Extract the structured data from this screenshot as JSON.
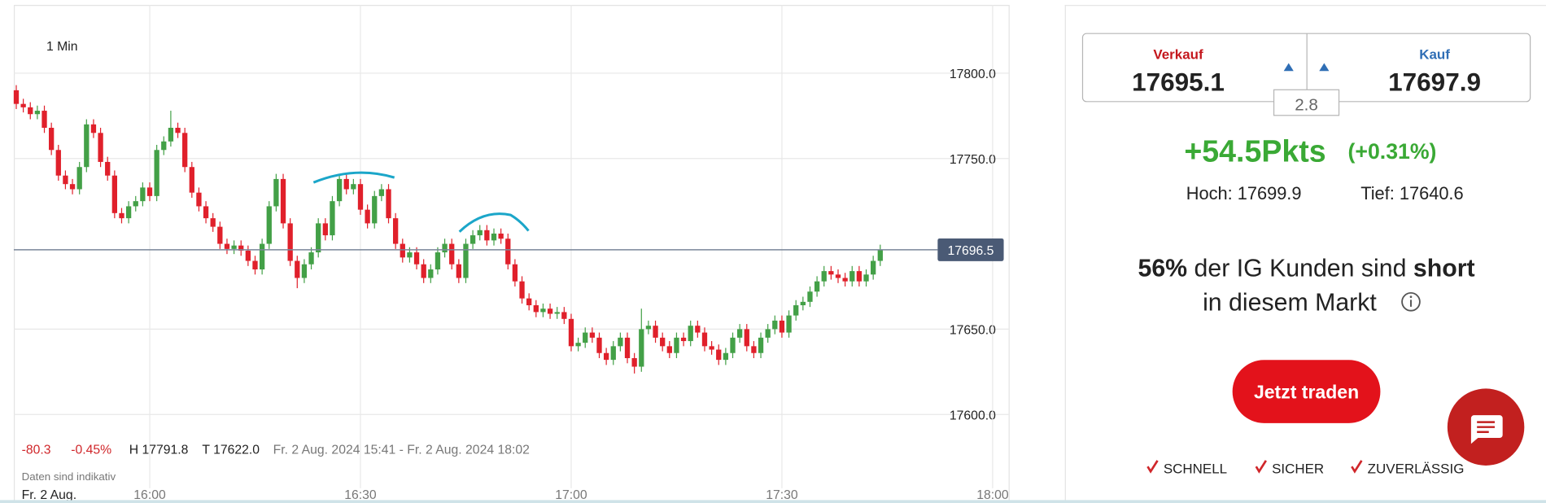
{
  "chart_data": {
    "type": "candlestick",
    "interval": "1 Min",
    "x": [
      "15:41",
      "15:42",
      "15:43",
      "15:44",
      "15:45",
      "15:46",
      "15:47",
      "15:48",
      "15:49",
      "15:50",
      "15:51",
      "15:52",
      "15:53",
      "15:54",
      "15:55",
      "15:56",
      "15:57",
      "15:58",
      "15:59",
      "16:00",
      "16:01",
      "16:02",
      "16:03",
      "16:04",
      "16:05",
      "16:06",
      "16:07",
      "16:08",
      "16:09",
      "16:10",
      "16:11",
      "16:12",
      "16:13",
      "16:14",
      "16:15",
      "16:16",
      "16:17",
      "16:18",
      "16:19",
      "16:20",
      "16:21",
      "16:22",
      "16:23",
      "16:24",
      "16:25",
      "16:26",
      "16:27",
      "16:28",
      "16:29",
      "16:30",
      "16:31",
      "16:32",
      "16:33",
      "16:34",
      "16:35",
      "16:36",
      "16:37",
      "16:38",
      "16:39",
      "16:40",
      "16:41",
      "16:42",
      "16:43",
      "16:44",
      "16:45",
      "16:46",
      "16:47",
      "16:48",
      "16:49",
      "16:50",
      "16:51",
      "16:52",
      "16:53",
      "16:54",
      "16:55",
      "16:56",
      "16:57",
      "16:58",
      "16:59",
      "17:00",
      "17:01",
      "17:02",
      "17:03",
      "17:04",
      "17:05",
      "17:06",
      "17:07",
      "17:08",
      "17:09",
      "17:10",
      "17:11",
      "17:12",
      "17:13",
      "17:14",
      "17:15",
      "17:16",
      "17:17",
      "17:18",
      "17:19",
      "17:20",
      "17:21",
      "17:22",
      "17:23",
      "17:24",
      "17:25",
      "17:26",
      "17:27",
      "17:28",
      "17:29",
      "17:30",
      "17:31",
      "17:32",
      "17:33",
      "17:34",
      "17:35",
      "17:36",
      "17:37",
      "17:38",
      "17:39",
      "17:40",
      "17:41",
      "17:42",
      "17:43",
      "17:44"
    ],
    "open": [
      17790,
      17782,
      17780,
      17776,
      17778,
      17768,
      17755,
      17740,
      17735,
      17732,
      17745,
      17770,
      17765,
      17748,
      17740,
      17718,
      17715,
      17722,
      17725,
      17733,
      17728,
      17755,
      17760,
      17768,
      17765,
      17745,
      17730,
      17722,
      17715,
      17710,
      17700,
      17697,
      17699,
      17696,
      17690,
      17685,
      17700,
      17722,
      17738,
      17712,
      17690,
      17680,
      17688,
      17695,
      17712,
      17705,
      17725,
      17738,
      17732,
      17735,
      17720,
      17712,
      17728,
      17732,
      17715,
      17700,
      17692,
      17695,
      17688,
      17680,
      17685,
      17695,
      17700,
      17688,
      17680,
      17700,
      17705,
      17708,
      17702,
      17706,
      17703,
      17688,
      17678,
      17668,
      17664,
      17660,
      17662,
      17659,
      17660,
      17656,
      17640,
      17642,
      17648,
      17645,
      17636,
      17632,
      17640,
      17645,
      17633,
      17628,
      17650,
      17652,
      17645,
      17640,
      17636,
      17645,
      17643,
      17652,
      17648,
      17640,
      17638,
      17632,
      17636,
      17645,
      17650,
      17640,
      17636,
      17645,
      17650,
      17655,
      17648,
      17658,
      17664,
      17666,
      17672,
      17678,
      17684,
      17682,
      17680,
      17678,
      17684,
      17678,
      17682,
      17690
    ],
    "high": [
      17793,
      17785,
      17783,
      17781,
      17781,
      17771,
      17758,
      17743,
      17738,
      17748,
      17773,
      17773,
      17768,
      17751,
      17743,
      17721,
      17725,
      17728,
      17736,
      17736,
      17758,
      17763,
      17778,
      17771,
      17768,
      17748,
      17733,
      17725,
      17718,
      17713,
      17703,
      17702,
      17702,
      17699,
      17693,
      17703,
      17725,
      17741,
      17741,
      17715,
      17693,
      17691,
      17698,
      17715,
      17715,
      17728,
      17741,
      17741,
      17738,
      17738,
      17723,
      17731,
      17735,
      17735,
      17718,
      17703,
      17698,
      17698,
      17691,
      17688,
      17698,
      17703,
      17703,
      17691,
      17703,
      17708,
      17711,
      17711,
      17709,
      17709,
      17706,
      17691,
      17681,
      17671,
      17667,
      17665,
      17665,
      17663,
      17663,
      17659,
      17645,
      17651,
      17651,
      17648,
      17639,
      17643,
      17648,
      17648,
      17636,
      17662,
      17655,
      17655,
      17648,
      17643,
      17648,
      17648,
      17655,
      17655,
      17651,
      17643,
      17641,
      17639,
      17648,
      17653,
      17653,
      17643,
      17648,
      17653,
      17658,
      17658,
      17661,
      17667,
      17669,
      17675,
      17681,
      17687,
      17687,
      17685,
      17683,
      17687,
      17687,
      17685,
      17693,
      17699.5
    ],
    "low": [
      17779,
      17777,
      17773,
      17773,
      17765,
      17752,
      17737,
      17732,
      17729,
      17729,
      17742,
      17762,
      17745,
      17737,
      17715,
      17712,
      17712,
      17719,
      17722,
      17725,
      17725,
      17752,
      17757,
      17762,
      17742,
      17727,
      17719,
      17712,
      17707,
      17697,
      17694,
      17694,
      17693,
      17687,
      17682,
      17682,
      17697,
      17719,
      17709,
      17687,
      17674,
      17677,
      17685,
      17692,
      17702,
      17702,
      17722,
      17729,
      17729,
      17717,
      17709,
      17709,
      17725,
      17712,
      17697,
      17689,
      17689,
      17685,
      17677,
      17677,
      17682,
      17692,
      17685,
      17677,
      17677,
      17697,
      17702,
      17699,
      17699,
      17700,
      17685,
      17675,
      17665,
      17661,
      17657,
      17657,
      17656,
      17656,
      17653,
      17637,
      17637,
      17639,
      17642,
      17633,
      17629,
      17629,
      17637,
      17630,
      17624,
      17625,
      17647,
      17642,
      17637,
      17633,
      17633,
      17640,
      17640,
      17645,
      17637,
      17635,
      17629,
      17629,
      17633,
      17642,
      17637,
      17633,
      17633,
      17642,
      17647,
      17645,
      17645,
      17655,
      17661,
      17663,
      17669,
      17675,
      17679,
      17677,
      17675,
      17675,
      17675,
      17675,
      17679,
      17687
    ],
    "close": [
      17782,
      17780,
      17776,
      17778,
      17768,
      17755,
      17740,
      17735,
      17732,
      17745,
      17770,
      17765,
      17748,
      17740,
      17718,
      17715,
      17722,
      17725,
      17733,
      17728,
      17755,
      17760,
      17768,
      17765,
      17745,
      17730,
      17722,
      17715,
      17710,
      17700,
      17697,
      17699,
      17696,
      17690,
      17685,
      17700,
      17722,
      17738,
      17712,
      17690,
      17680,
      17688,
      17695,
      17712,
      17705,
      17725,
      17738,
      17732,
      17735,
      17720,
      17712,
      17728,
      17732,
      17715,
      17700,
      17692,
      17695,
      17688,
      17680,
      17685,
      17695,
      17700,
      17688,
      17680,
      17700,
      17705,
      17708,
      17702,
      17706,
      17703,
      17688,
      17678,
      17668,
      17664,
      17660,
      17662,
      17659,
      17660,
      17656,
      17640,
      17642,
      17648,
      17645,
      17636,
      17632,
      17640,
      17645,
      17633,
      17628,
      17650,
      17652,
      17645,
      17640,
      17636,
      17645,
      17643,
      17652,
      17648,
      17640,
      17638,
      17632,
      17636,
      17645,
      17650,
      17640,
      17636,
      17645,
      17650,
      17655,
      17648,
      17658,
      17664,
      17666,
      17672,
      17678,
      17684,
      17682,
      17680,
      17678,
      17684,
      17678,
      17682,
      17690,
      17696.5
    ],
    "up_color": "#43a047",
    "down_color": "#e0202b",
    "xlim": [
      "15:41",
      "18:02"
    ],
    "xticks": [
      "16:00",
      "16:30",
      "17:00",
      "17:30",
      "18:00"
    ],
    "ylim": [
      17551,
      17840
    ],
    "yticks": [
      {
        "value": 17600,
        "label": "17600.0"
      },
      {
        "value": 17650,
        "label": "17650.0"
      },
      {
        "value": 17750,
        "label": "17750.0"
      },
      {
        "value": 17800,
        "label": "17800.0"
      }
    ],
    "grid": true,
    "last_price": 17696.5,
    "stats": {
      "change": "-80.3",
      "change_pct": "-0.45%",
      "high": "H 17791.8",
      "low": "T 17622.0",
      "range": "Fr. 2 Aug. 2024 15:41 - Fr. 2 Aug. 2024 18:02"
    },
    "note": "Daten sind indikativ",
    "date_label": "Fr. 2 Aug."
  },
  "panel": {
    "sell_label": "Verkauf",
    "sell": "17695.1",
    "buy_label": "Kauf",
    "buy": "17697.9",
    "spread": "2.8",
    "change": "+54.5Pkts",
    "change_pct": "(+0.31%)",
    "high": "Hoch: 17699.9",
    "low": "Tief: 17640.6",
    "sentiment": {
      "pct": "56%",
      "text": "der IG Kunden sind",
      "position": "short",
      "line2": "in diesem Markt"
    },
    "button": "Jetzt traden",
    "features": [
      "SCHNELL",
      "SICHER",
      "ZUVERLÄSSIG"
    ]
  }
}
